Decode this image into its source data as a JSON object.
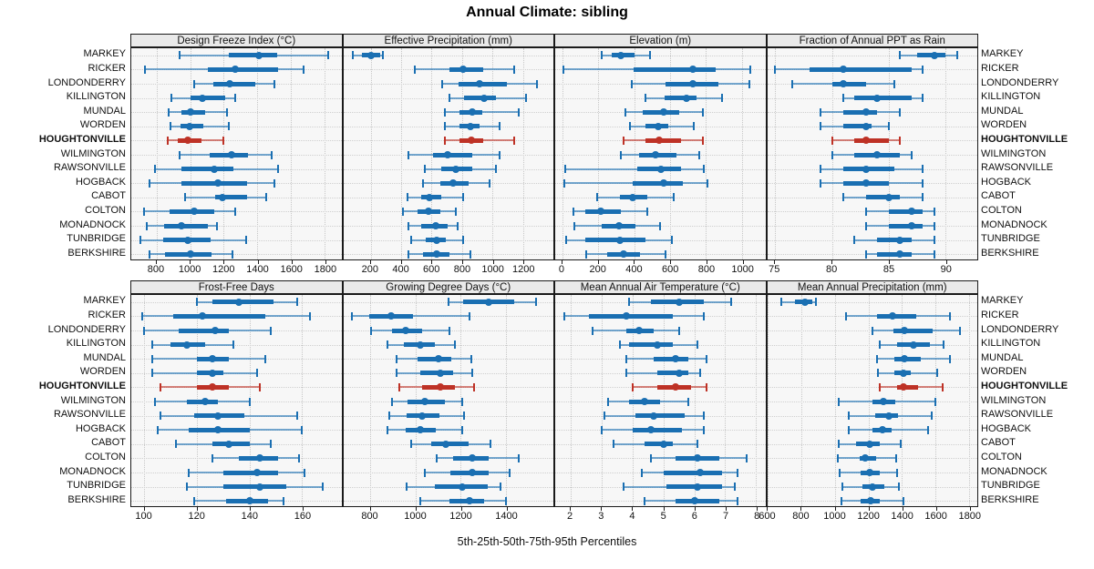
{
  "title": "Annual Climate: sibling",
  "footer": "5th-25th-50th-75th-95th Percentiles",
  "colors": {
    "series": "#1a6fb2",
    "highlight": "#be3226",
    "strip_bg": "#e9e9e9",
    "panel_bg": "#f7f7f7",
    "grid": "#c7c7c7",
    "border": "#1a1a1a"
  },
  "locations": [
    "MARKEY",
    "RICKER",
    "LONDONDERRY",
    "KILLINGTON",
    "MUNDAL",
    "WORDEN",
    "HOUGHTONVILLE",
    "WILMINGTON",
    "RAWSONVILLE",
    "HOGBACK",
    "CABOT",
    "COLTON",
    "MONADNOCK",
    "TUNBRIDGE",
    "BERKSHIRE"
  ],
  "highlight_location": "HOUGHTONVILLE",
  "chart_data": {
    "type": "dotplot-percentiles",
    "percentiles": [
      5,
      25,
      50,
      75,
      95
    ],
    "layout": "2 rows x 4 columns trellis, row labels on both sides, bottom axes",
    "panels": [
      {
        "title": "Design Freeze Index (°C)",
        "xlim": [
          650,
          1900
        ],
        "ticks": [
          800,
          1000,
          1200,
          1400,
          1600,
          1800
        ],
        "values": [
          [
            940,
            1230,
            1410,
            1520,
            1820
          ],
          [
            730,
            1105,
            1270,
            1525,
            1675
          ],
          [
            1025,
            1140,
            1235,
            1385,
            1500
          ],
          [
            890,
            1000,
            1075,
            1210,
            1270
          ],
          [
            875,
            950,
            1000,
            1090,
            1220
          ],
          [
            885,
            945,
            995,
            1080,
            1230
          ],
          [
            865,
            925,
            985,
            1065,
            1200
          ],
          [
            940,
            1115,
            1245,
            1345,
            1485
          ],
          [
            790,
            950,
            1145,
            1260,
            1525
          ],
          [
            760,
            950,
            1165,
            1340,
            1500
          ],
          [
            970,
            1150,
            1195,
            1340,
            1450
          ],
          [
            725,
            880,
            1025,
            1145,
            1270
          ],
          [
            740,
            845,
            950,
            1105,
            1160
          ],
          [
            705,
            840,
            985,
            1120,
            1335
          ],
          [
            760,
            850,
            1000,
            1125,
            1250
          ]
        ]
      },
      {
        "title": "Effective Precipitation (mm)",
        "xlim": [
          20,
          1400
        ],
        "ticks": [
          200,
          400,
          600,
          800,
          1000,
          1200
        ],
        "values": [
          [
            80,
            140,
            200,
            260,
            280
          ],
          [
            490,
            715,
            805,
            940,
            1145
          ],
          [
            670,
            775,
            915,
            1095,
            1295
          ],
          [
            715,
            815,
            945,
            1025,
            1220
          ],
          [
            685,
            785,
            870,
            935,
            1170
          ],
          [
            690,
            785,
            855,
            915,
            1045
          ],
          [
            685,
            785,
            860,
            940,
            1145
          ],
          [
            450,
            610,
            705,
            870,
            1045
          ],
          [
            555,
            665,
            760,
            870,
            1020
          ],
          [
            545,
            655,
            740,
            845,
            980
          ],
          [
            440,
            530,
            585,
            665,
            810
          ],
          [
            415,
            505,
            580,
            655,
            760
          ],
          [
            450,
            530,
            630,
            705,
            770
          ],
          [
            465,
            560,
            635,
            695,
            805
          ],
          [
            450,
            545,
            635,
            720,
            855
          ]
        ]
      },
      {
        "title": "Elevation (m)",
        "xlim": [
          -40,
          1130
        ],
        "ticks": [
          0,
          200,
          400,
          600,
          800,
          1000
        ],
        "values": [
          [
            220,
            275,
            325,
            400,
            490
          ],
          [
            5,
            395,
            725,
            855,
            1045
          ],
          [
            385,
            575,
            725,
            870,
            1040
          ],
          [
            465,
            570,
            690,
            745,
            890
          ],
          [
            350,
            445,
            565,
            650,
            780
          ],
          [
            375,
            465,
            535,
            590,
            730
          ],
          [
            340,
            460,
            540,
            660,
            780
          ],
          [
            325,
            425,
            520,
            635,
            760
          ],
          [
            15,
            415,
            550,
            660,
            785
          ],
          [
            10,
            390,
            565,
            670,
            810
          ],
          [
            195,
            320,
            390,
            475,
            620
          ],
          [
            60,
            130,
            215,
            325,
            475
          ],
          [
            65,
            220,
            315,
            405,
            545
          ],
          [
            20,
            130,
            320,
            465,
            610
          ],
          [
            135,
            250,
            340,
            430,
            575
          ]
        ]
      },
      {
        "title": "Fraction of Annual PPT as Rain",
        "xlim": [
          74.3,
          92.8
        ],
        "ticks": [
          75,
          80,
          85,
          90
        ],
        "values": [
          [
            86,
            87.5,
            89,
            90,
            91
          ],
          [
            75,
            78,
            81,
            87,
            88
          ],
          [
            76.5,
            80,
            81,
            83,
            85.5
          ],
          [
            81,
            82,
            84,
            87,
            88
          ],
          [
            79,
            81,
            83,
            84,
            86
          ],
          [
            79,
            81,
            83,
            83.5,
            85
          ],
          [
            80,
            82,
            83,
            85,
            86
          ],
          [
            80,
            82,
            84,
            86,
            87
          ],
          [
            79,
            81,
            83,
            85.5,
            88
          ],
          [
            79,
            81,
            83,
            85,
            88
          ],
          [
            81,
            83,
            85,
            86,
            88
          ],
          [
            83,
            85,
            87,
            88,
            89
          ],
          [
            83,
            85,
            87,
            88,
            89
          ],
          [
            82,
            84,
            86,
            87,
            89
          ],
          [
            83,
            84,
            86,
            87,
            89
          ]
        ]
      },
      {
        "title": "Frost-Free Days",
        "xlim": [
          95,
          175
        ],
        "ticks": [
          100,
          120,
          140,
          160
        ],
        "values": [
          [
            120,
            126,
            136,
            149,
            158
          ],
          [
            99,
            111,
            122,
            146,
            163
          ],
          [
            100,
            113,
            127,
            132,
            148
          ],
          [
            103,
            110,
            116,
            123,
            134
          ],
          [
            103,
            120,
            126,
            132,
            146
          ],
          [
            103,
            120,
            126,
            130,
            143
          ],
          [
            106,
            120,
            126,
            132,
            144
          ],
          [
            104,
            116,
            123,
            128,
            140
          ],
          [
            106,
            119,
            128,
            138,
            158
          ],
          [
            105,
            117,
            128,
            140,
            160
          ],
          [
            112,
            126,
            132,
            140,
            148
          ],
          [
            126,
            136,
            144,
            151,
            159
          ],
          [
            117,
            130,
            143,
            151,
            161
          ],
          [
            116,
            130,
            144,
            154,
            168
          ],
          [
            119,
            131,
            140,
            147,
            153
          ]
        ]
      },
      {
        "title": "Growing Degree Days (°C)",
        "xlim": [
          680,
          1610
        ],
        "ticks": [
          800,
          1000,
          1200,
          1400
        ],
        "values": [
          [
            1145,
            1210,
            1325,
            1435,
            1535
          ],
          [
            720,
            795,
            890,
            990,
            1240
          ],
          [
            805,
            895,
            955,
            1030,
            1150
          ],
          [
            875,
            950,
            1020,
            1085,
            1175
          ],
          [
            915,
            1010,
            1100,
            1160,
            1245
          ],
          [
            915,
            1020,
            1110,
            1165,
            1250
          ],
          [
            930,
            1030,
            1110,
            1175,
            1260
          ],
          [
            895,
            965,
            1040,
            1130,
            1205
          ],
          [
            885,
            960,
            1030,
            1105,
            1215
          ],
          [
            875,
            955,
            1020,
            1090,
            1205
          ],
          [
            980,
            1070,
            1135,
            1235,
            1330
          ],
          [
            1095,
            1165,
            1250,
            1325,
            1455
          ],
          [
            1040,
            1155,
            1250,
            1325,
            1415
          ],
          [
            960,
            1085,
            1205,
            1320,
            1375
          ],
          [
            1020,
            1150,
            1240,
            1305,
            1400
          ]
        ]
      },
      {
        "title": "Mean Annual Air Temperature (°C)",
        "xlim": [
          1.5,
          8.3
        ],
        "ticks": [
          2,
          3,
          4,
          5,
          6,
          7,
          8
        ],
        "values": [
          [
            3.9,
            4.6,
            5.5,
            6.3,
            7.2
          ],
          [
            1.8,
            2.6,
            3.8,
            5.3,
            6.3
          ],
          [
            2.7,
            3.8,
            4.2,
            4.7,
            5.5
          ],
          [
            3.6,
            3.9,
            4.8,
            5.3,
            6.1
          ],
          [
            3.8,
            4.7,
            5.4,
            5.8,
            6.4
          ],
          [
            3.8,
            4.8,
            5.5,
            5.8,
            6.2
          ],
          [
            4.0,
            4.8,
            5.4,
            5.9,
            6.4
          ],
          [
            3.2,
            3.9,
            4.4,
            4.9,
            5.8
          ],
          [
            3.1,
            4.1,
            4.7,
            5.7,
            6.3
          ],
          [
            3.0,
            4.0,
            4.6,
            5.6,
            6.3
          ],
          [
            3.4,
            4.4,
            5.0,
            5.3,
            6.1
          ],
          [
            4.6,
            5.4,
            6.1,
            6.8,
            7.7
          ],
          [
            4.3,
            5.0,
            6.2,
            6.9,
            7.4
          ],
          [
            3.7,
            5.1,
            6.1,
            6.9,
            7.3
          ],
          [
            4.4,
            5.4,
            6.0,
            6.8,
            7.4
          ]
        ]
      },
      {
        "title": "Mean Annual Precipitation (mm)",
        "xlim": [
          595,
          1850
        ],
        "ticks": [
          600,
          800,
          1000,
          1200,
          1400,
          1600,
          1800
        ],
        "values": [
          [
            680,
            760,
            820,
            865,
            885
          ],
          [
            1065,
            1250,
            1345,
            1485,
            1685
          ],
          [
            1225,
            1350,
            1415,
            1585,
            1745
          ],
          [
            1270,
            1370,
            1470,
            1565,
            1650
          ],
          [
            1250,
            1355,
            1415,
            1510,
            1685
          ],
          [
            1255,
            1355,
            1410,
            1455,
            1610
          ],
          [
            1265,
            1370,
            1410,
            1495,
            1645
          ],
          [
            1025,
            1225,
            1290,
            1360,
            1600
          ],
          [
            1085,
            1240,
            1320,
            1375,
            1580
          ],
          [
            1085,
            1225,
            1285,
            1340,
            1555
          ],
          [
            1025,
            1125,
            1205,
            1270,
            1390
          ],
          [
            1015,
            1145,
            1180,
            1245,
            1365
          ],
          [
            1030,
            1155,
            1205,
            1270,
            1370
          ],
          [
            1045,
            1165,
            1225,
            1295,
            1380
          ],
          [
            1040,
            1155,
            1215,
            1270,
            1410
          ]
        ]
      }
    ]
  }
}
